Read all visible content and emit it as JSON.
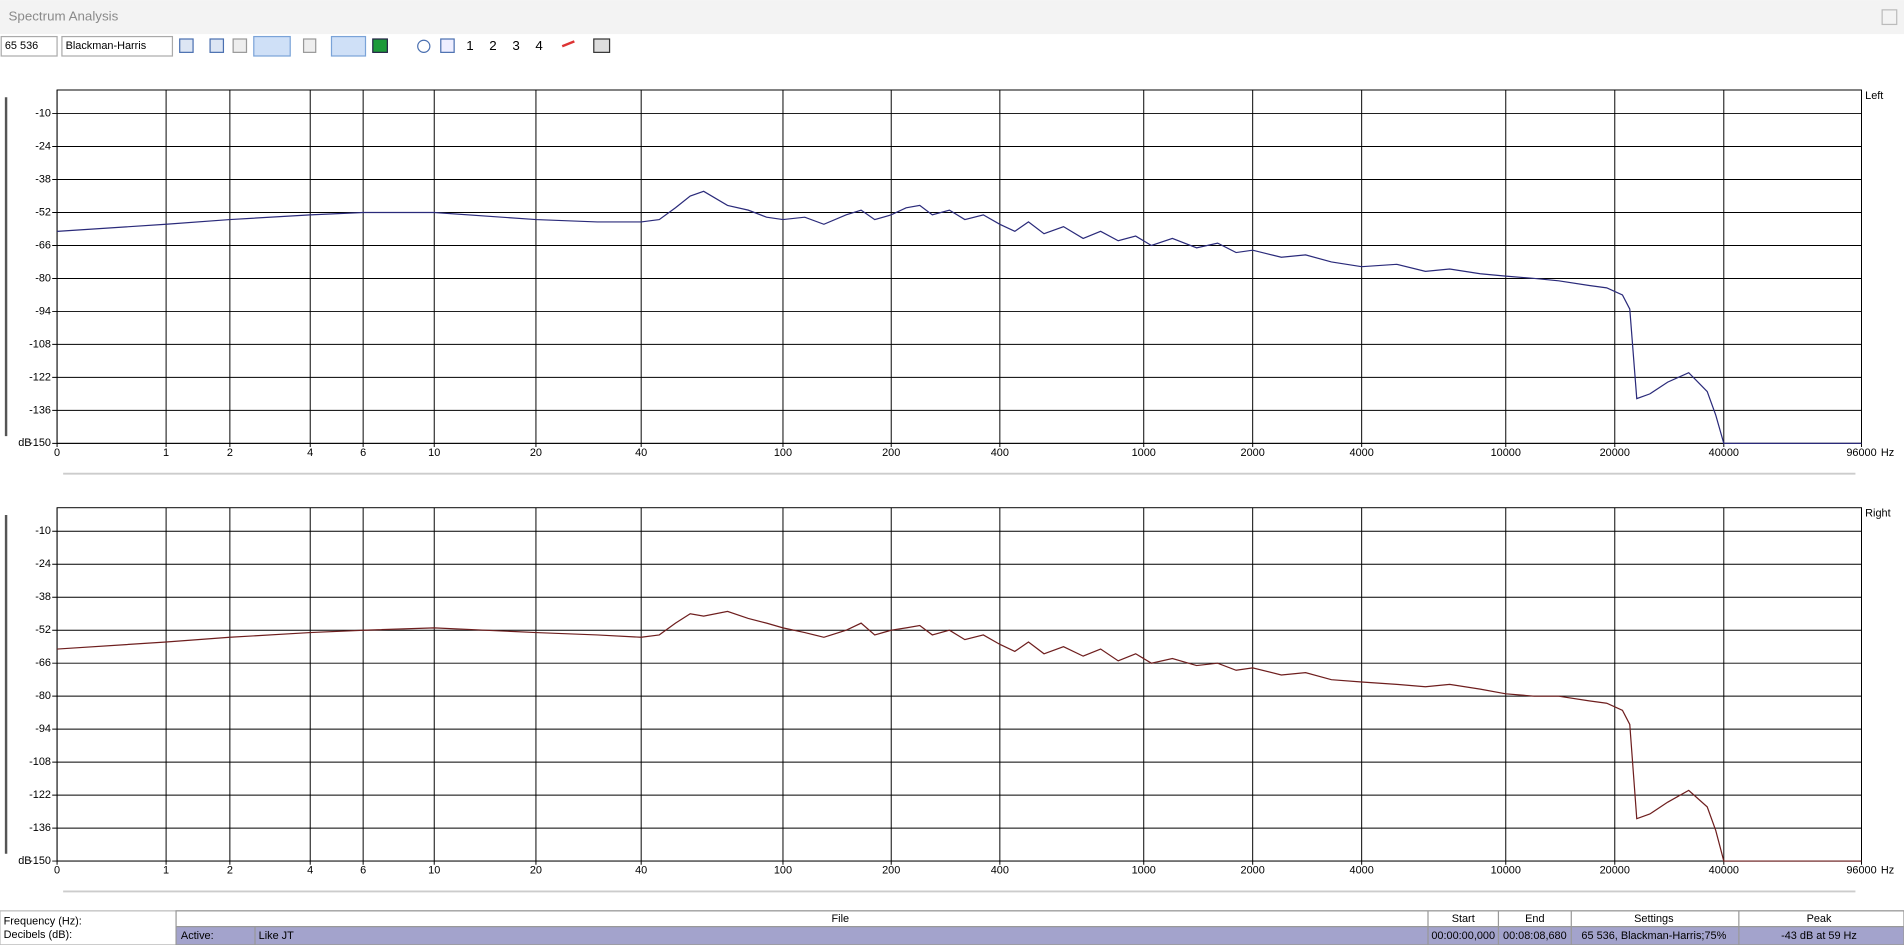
{
  "window": {
    "title": "Spectrum Analysis"
  },
  "toolbar": {
    "fft_size": "65 536",
    "window_function": "Blackman-Harris",
    "presets": [
      "1",
      "2",
      "3",
      "4"
    ]
  },
  "chart_data": [
    {
      "type": "line",
      "channel": "Left",
      "x_label": "Hz",
      "y_label": "dB",
      "xscale": "log",
      "grid": true,
      "xlim": [
        0,
        96000
      ],
      "xticks": [
        0,
        1,
        2,
        4,
        6,
        10,
        20,
        40,
        100,
        200,
        400,
        1000,
        2000,
        4000,
        10000,
        20000,
        40000,
        96000
      ],
      "ylim": [
        -150,
        0
      ],
      "yticks": [
        -10,
        -24,
        -38,
        -52,
        -66,
        -80,
        -94,
        -108,
        -122,
        -136,
        -150
      ],
      "x": [
        0,
        1,
        2,
        4,
        6,
        10,
        20,
        30,
        40,
        45,
        50,
        55,
        60,
        70,
        80,
        90,
        100,
        115,
        130,
        150,
        165,
        180,
        200,
        220,
        240,
        260,
        290,
        320,
        360,
        400,
        440,
        480,
        530,
        600,
        680,
        760,
        850,
        950,
        1050,
        1200,
        1400,
        1600,
        1800,
        2000,
        2400,
        2800,
        3300,
        4000,
        5000,
        6000,
        7000,
        8500,
        10000,
        12000,
        14000,
        17000,
        19000,
        21000,
        22000,
        23000,
        25000,
        28000,
        32000,
        36000,
        38000,
        40000,
        96000
      ],
      "series": [
        {
          "color": "#2a2a7a",
          "values": [
            -60,
            -57,
            -55,
            -53,
            -52,
            -52,
            -55,
            -56,
            -56,
            -55,
            -50,
            -45,
            -43,
            -49,
            -51,
            -54,
            -55,
            -54,
            -57,
            -53,
            -51,
            -55,
            -53,
            -50,
            -49,
            -53,
            -51,
            -55,
            -53,
            -57,
            -60,
            -56,
            -61,
            -58,
            -63,
            -60,
            -64,
            -62,
            -66,
            -63,
            -67,
            -65,
            -69,
            -68,
            -71,
            -70,
            -73,
            -75,
            -74,
            -77,
            -76,
            -78,
            -79,
            -80,
            -81,
            -83,
            -84,
            -87,
            -93,
            -131,
            -129,
            -124,
            -120,
            -128,
            -138,
            -150,
            -150
          ]
        }
      ]
    },
    {
      "type": "line",
      "channel": "Right",
      "x_label": "Hz",
      "y_label": "dB",
      "xscale": "log",
      "grid": true,
      "xlim": [
        0,
        96000
      ],
      "xticks": [
        0,
        1,
        2,
        4,
        6,
        10,
        20,
        40,
        100,
        200,
        400,
        1000,
        2000,
        4000,
        10000,
        20000,
        40000,
        96000
      ],
      "ylim": [
        -150,
        0
      ],
      "yticks": [
        -10,
        -24,
        -38,
        -52,
        -66,
        -80,
        -94,
        -108,
        -122,
        -136,
        -150
      ],
      "x": [
        0,
        1,
        2,
        4,
        6,
        10,
        20,
        30,
        40,
        45,
        50,
        55,
        60,
        70,
        80,
        90,
        100,
        115,
        130,
        150,
        165,
        180,
        200,
        220,
        240,
        260,
        290,
        320,
        360,
        400,
        440,
        480,
        530,
        600,
        680,
        760,
        850,
        950,
        1050,
        1200,
        1400,
        1600,
        1800,
        2000,
        2400,
        2800,
        3300,
        4000,
        5000,
        6000,
        7000,
        8500,
        10000,
        12000,
        14000,
        17000,
        19000,
        21000,
        22000,
        23000,
        25000,
        28000,
        32000,
        36000,
        38000,
        40000,
        96000
      ],
      "series": [
        {
          "color": "#6e1e1e",
          "values": [
            -60,
            -57,
            -55,
            -53,
            -52,
            -51,
            -53,
            -54,
            -55,
            -54,
            -49,
            -45,
            -46,
            -44,
            -47,
            -49,
            -51,
            -53,
            -55,
            -52,
            -49,
            -54,
            -52,
            -51,
            -50,
            -54,
            -52,
            -56,
            -54,
            -58,
            -61,
            -57,
            -62,
            -59,
            -63,
            -60,
            -65,
            -62,
            -66,
            -64,
            -67,
            -66,
            -69,
            -68,
            -71,
            -70,
            -73,
            -74,
            -75,
            -76,
            -75,
            -77,
            -79,
            -80,
            -80,
            -82,
            -83,
            -86,
            -92,
            -132,
            -130,
            -125,
            -120,
            -127,
            -137,
            -150,
            -150
          ]
        }
      ]
    }
  ],
  "status": {
    "labels": [
      "Frequency (Hz):",
      "Decibels (dB):"
    ],
    "table": {
      "headers": [
        "File",
        "Start",
        "End",
        "Settings",
        "Peak"
      ],
      "rows": [
        [
          "Active:",
          "Like JT",
          "00:00:00,000",
          "00:08:08,680",
          "65 536, Blackman-Harris;75%",
          "-43 dB at 59 Hz"
        ]
      ]
    }
  }
}
